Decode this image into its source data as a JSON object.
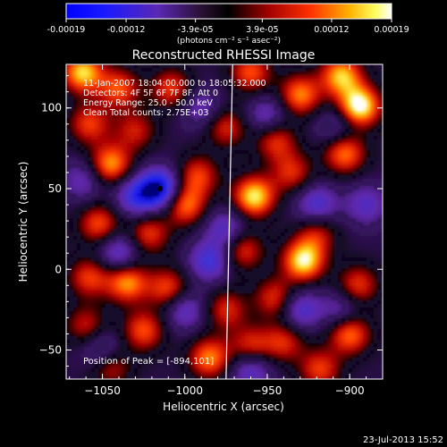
{
  "colorbar": {
    "ticks": [
      "-0.00019",
      "-0.00012",
      "-3.9e-05",
      "3.9e-05",
      "0.00012",
      "0.00019"
    ],
    "tick_values": [
      -0.00019,
      -0.00012,
      -3.9e-05,
      3.9e-05,
      0.00012,
      0.00019
    ],
    "range": [
      -0.00019,
      0.00019
    ],
    "units_label": "(photons cm⁻² s⁻¹ asec⁻²)"
  },
  "chart_data": {
    "type": "heatmap",
    "title": "Reconstructed RHESSI Image",
    "xlabel": "Heliocentric X (arcsec)",
    "ylabel": "Heliocentric Y (arcsec)",
    "xlim": [
      -1072,
      -880
    ],
    "ylim": [
      -68,
      127
    ],
    "xticks": [
      -1050,
      -1000,
      -950,
      -900
    ],
    "yticks": [
      -50,
      0,
      50,
      100
    ],
    "xtick_labels": [
      "−1050",
      "−1000",
      "−950",
      "−900"
    ],
    "ytick_labels": [
      "−50",
      "0",
      "50",
      "100"
    ],
    "colormap": "RHESSI red/temperature (blue negative → black → red → yellow → white)",
    "peak_position": [
      -894,
      101
    ],
    "limb_line": {
      "x_top": -971,
      "x_bottom": -975
    },
    "annotations": [
      "11-Jan-2007 18:04:00.000 to 18:05:32.000",
      "Detectors: 4F 5F 6F 7F 8F, Att 0",
      "Energy Range: 25.0 - 50.0 keV",
      "Clean     Total counts: 2.75E+03"
    ],
    "peak_label": "Position of Peak = [-894,101]",
    "blobs": [
      {
        "x": -1062,
        "y": 122,
        "v": 0.85
      },
      {
        "x": -1040,
        "y": 112,
        "v": 0.6
      },
      {
        "x": -1008,
        "y": 112,
        "v": 0.55
      },
      {
        "x": -960,
        "y": 122,
        "v": 0.6
      },
      {
        "x": -930,
        "y": 108,
        "v": 0.7
      },
      {
        "x": -894,
        "y": 101,
        "v": 1.0
      },
      {
        "x": -905,
        "y": 120,
        "v": 0.8
      },
      {
        "x": -1058,
        "y": 90,
        "v": 0.55
      },
      {
        "x": -1030,
        "y": 86,
        "v": 0.45
      },
      {
        "x": -975,
        "y": 88,
        "v": 0.5
      },
      {
        "x": -945,
        "y": 80,
        "v": 0.55
      },
      {
        "x": -1045,
        "y": 65,
        "v": 0.75
      },
      {
        "x": -992,
        "y": 58,
        "v": 0.55
      },
      {
        "x": -935,
        "y": 60,
        "v": 0.5
      },
      {
        "x": -903,
        "y": 72,
        "v": 0.7
      },
      {
        "x": -958,
        "y": 45,
        "v": 0.9
      },
      {
        "x": -1000,
        "y": 40,
        "v": 0.7
      },
      {
        "x": -1052,
        "y": 28,
        "v": 0.6
      },
      {
        "x": -1022,
        "y": 22,
        "v": 0.55
      },
      {
        "x": -920,
        "y": 22,
        "v": 0.45
      },
      {
        "x": -965,
        "y": 12,
        "v": 0.55
      },
      {
        "x": -928,
        "y": 5,
        "v": 0.9
      },
      {
        "x": -1058,
        "y": -5,
        "v": 0.55
      },
      {
        "x": -1035,
        "y": -8,
        "v": 0.75
      },
      {
        "x": -1010,
        "y": -12,
        "v": 0.6
      },
      {
        "x": -945,
        "y": -18,
        "v": 0.55
      },
      {
        "x": -895,
        "y": -10,
        "v": 0.55
      },
      {
        "x": -975,
        "y": -25,
        "v": 0.5
      },
      {
        "x": -1060,
        "y": -35,
        "v": 0.45
      },
      {
        "x": -1025,
        "y": -38,
        "v": 0.6
      },
      {
        "x": -940,
        "y": -45,
        "v": 0.5
      },
      {
        "x": -900,
        "y": -40,
        "v": 0.7
      },
      {
        "x": -985,
        "y": -55,
        "v": 0.7
      },
      {
        "x": -960,
        "y": -48,
        "v": 0.55
      },
      {
        "x": -1045,
        "y": -60,
        "v": 0.5
      },
      {
        "x": -918,
        "y": -62,
        "v": 0.55
      },
      {
        "x": -1015,
        "y": 50,
        "v": -0.95
      },
      {
        "x": -1030,
        "y": 45,
        "v": -0.6
      },
      {
        "x": -975,
        "y": 25,
        "v": -0.5
      },
      {
        "x": -1040,
        "y": 10,
        "v": -0.55
      },
      {
        "x": -985,
        "y": 5,
        "v": -0.6
      },
      {
        "x": -920,
        "y": 40,
        "v": -0.55
      },
      {
        "x": -950,
        "y": 95,
        "v": -0.45
      },
      {
        "x": -1000,
        "y": -25,
        "v": -0.5
      },
      {
        "x": -930,
        "y": -25,
        "v": -0.55
      },
      {
        "x": -1050,
        "y": -50,
        "v": -0.45
      },
      {
        "x": -960,
        "y": -62,
        "v": -0.55
      },
      {
        "x": -1062,
        "y": 55,
        "v": -0.4
      },
      {
        "x": -990,
        "y": 100,
        "v": -0.4
      },
      {
        "x": -908,
        "y": 88,
        "v": -0.35
      },
      {
        "x": -890,
        "y": 40,
        "v": -0.45
      },
      {
        "x": -905,
        "y": -25,
        "v": -0.4
      }
    ]
  },
  "footer": {
    "date": "23-Jul-2013 15:52"
  }
}
